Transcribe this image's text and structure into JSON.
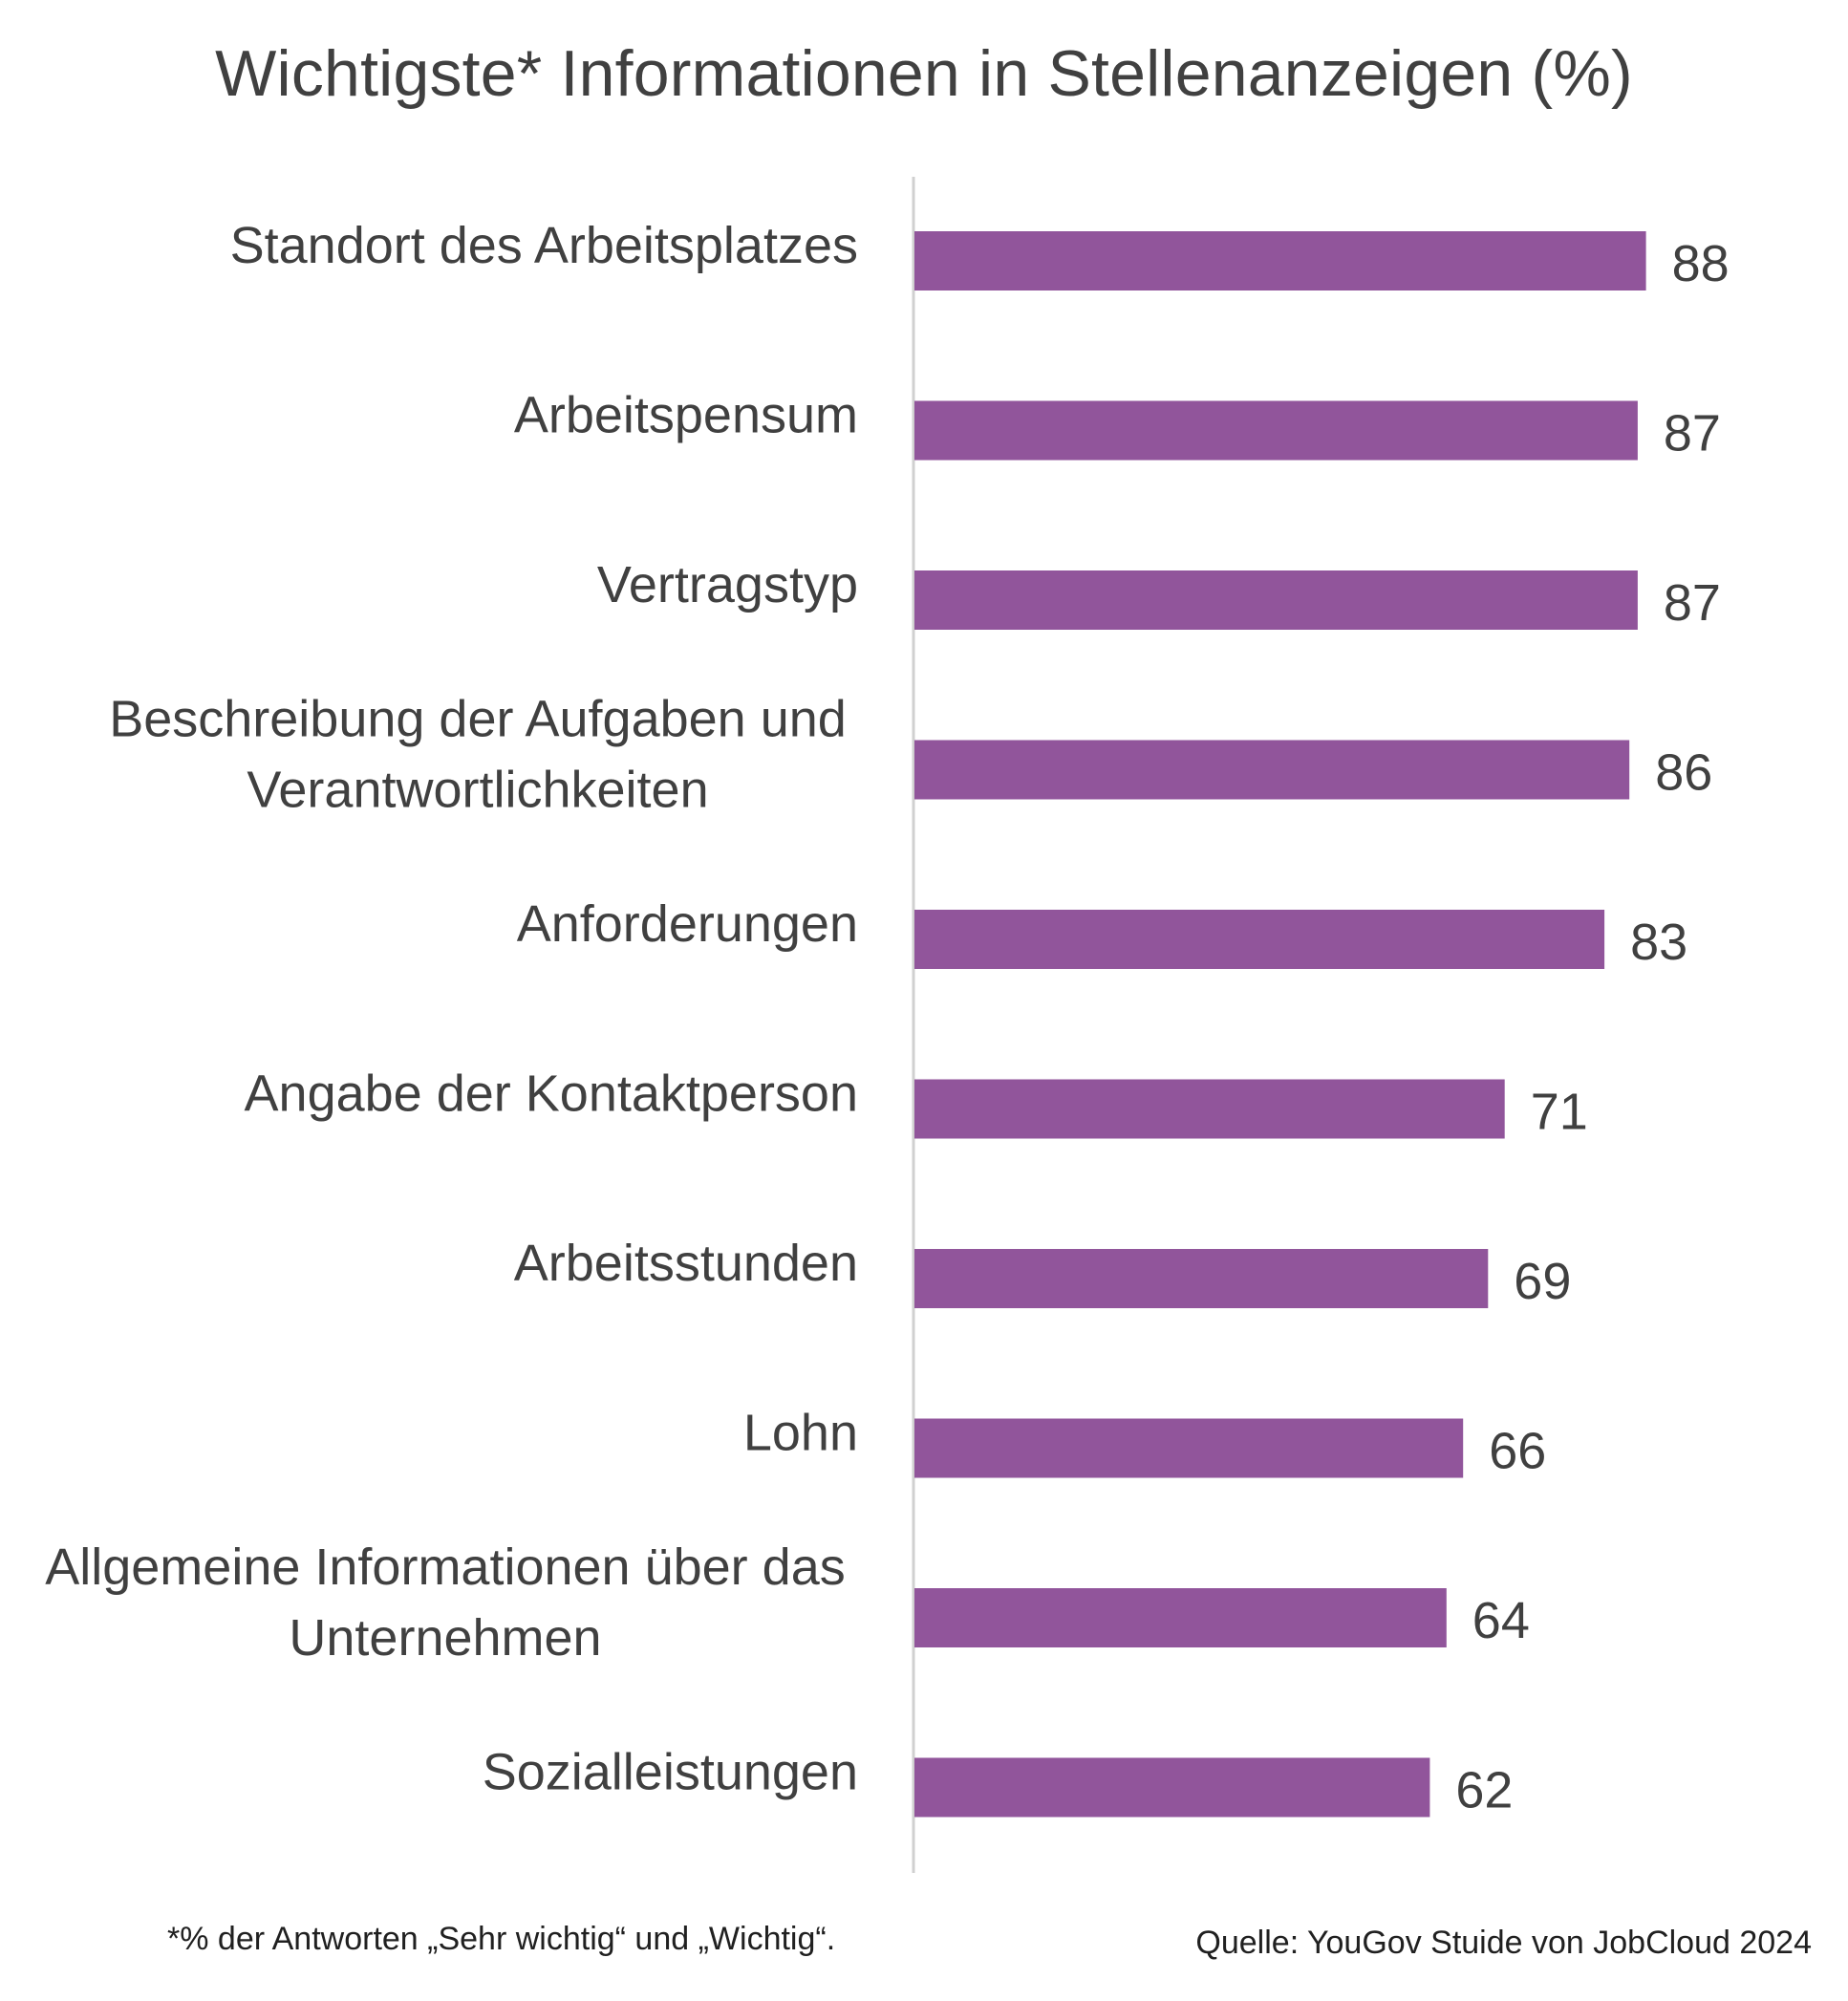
{
  "chart_data": {
    "type": "bar",
    "orientation": "horizontal",
    "title": "Wichtigste* Informationen in Stellenanzeigen (%)",
    "categories": [
      [
        "Standort des Arbeitsplatzes"
      ],
      [
        "Arbeitspensum"
      ],
      [
        "Vertragstyp"
      ],
      [
        "Beschreibung der Aufgaben und",
        "Verantwortlichkeiten"
      ],
      [
        "Anforderungen"
      ],
      [
        "Angabe der Kontaktperson"
      ],
      [
        "Arbeitsstunden"
      ],
      [
        "Lohn"
      ],
      [
        "Allgemeine Informationen über das",
        "Unternehmen"
      ],
      [
        "Sozialleistungen"
      ]
    ],
    "values": [
      88,
      87,
      87,
      86,
      83,
      71,
      69,
      66,
      64,
      62
    ],
    "xlim": [
      0,
      100
    ],
    "bar_color": "#91559b",
    "axis_color": "#d0d0d0",
    "grid": false,
    "legend": "none",
    "data_labels": true
  },
  "footnote": "*% der Antworten „Sehr wichtig“ und „Wichtig“.",
  "source": "Quelle: YouGov Stuide von JobCloud 2024"
}
